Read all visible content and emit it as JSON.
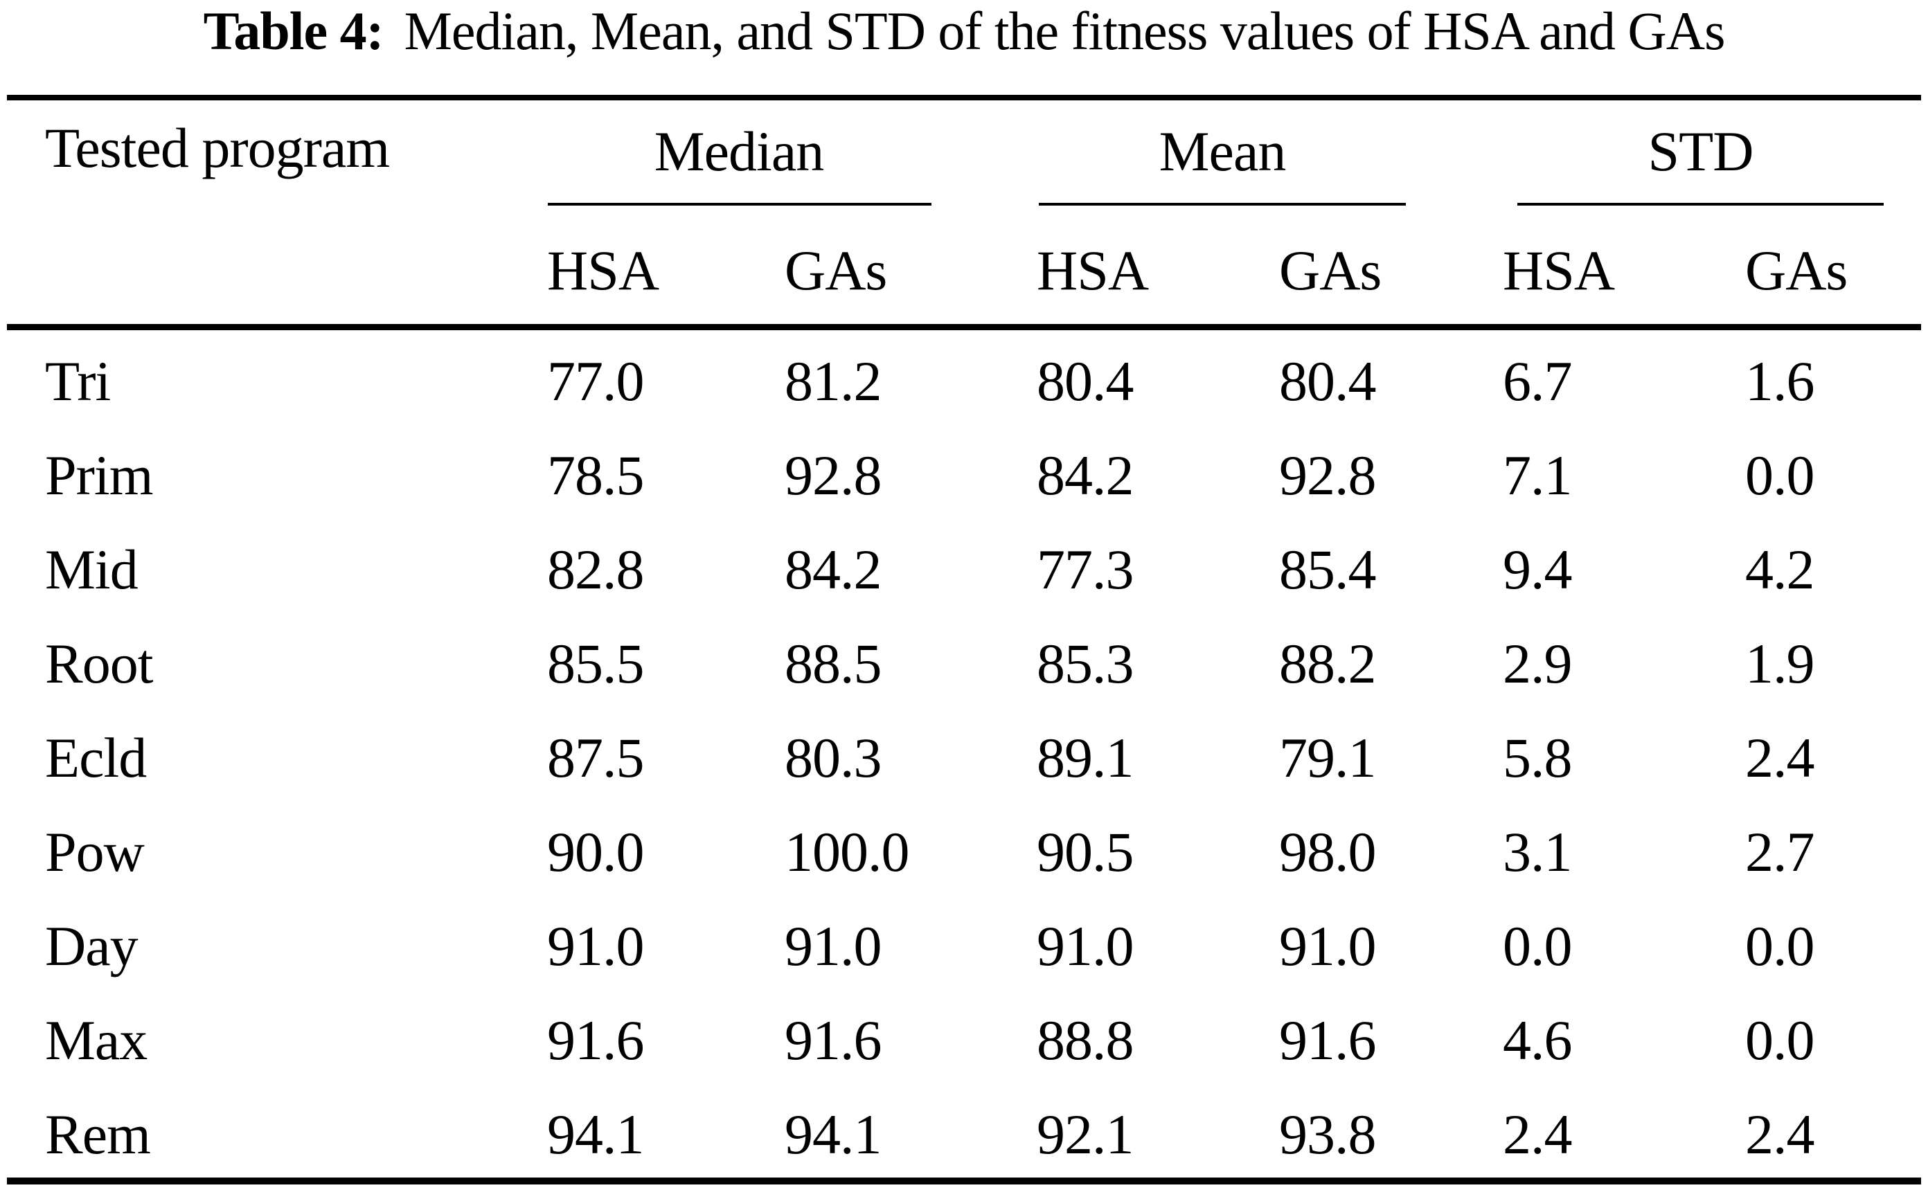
{
  "caption": {
    "label": "Table 4:",
    "text": "Median, Mean, and STD of the fitness values of HSA and GAs"
  },
  "table": {
    "program_header": "Tested program",
    "groups": [
      {
        "label": "Median"
      },
      {
        "label": "Mean"
      },
      {
        "label": "STD"
      }
    ],
    "subheaders": [
      "HSA",
      "GAs",
      "HSA",
      "GAs",
      "HSA",
      "GAs"
    ],
    "rows": [
      {
        "program": "Tri",
        "median_hsa": "77.0",
        "median_gas": "81.2",
        "mean_hsa": "80.4",
        "mean_gas": "80.4",
        "std_hsa": "6.7",
        "std_gas": "1.6"
      },
      {
        "program": "Prim",
        "median_hsa": "78.5",
        "median_gas": "92.8",
        "mean_hsa": "84.2",
        "mean_gas": "92.8",
        "std_hsa": "7.1",
        "std_gas": "0.0"
      },
      {
        "program": "Mid",
        "median_hsa": "82.8",
        "median_gas": "84.2",
        "mean_hsa": "77.3",
        "mean_gas": "85.4",
        "std_hsa": "9.4",
        "std_gas": "4.2"
      },
      {
        "program": "Root",
        "median_hsa": "85.5",
        "median_gas": "88.5",
        "mean_hsa": "85.3",
        "mean_gas": "88.2",
        "std_hsa": "2.9",
        "std_gas": "1.9"
      },
      {
        "program": "Ecld",
        "median_hsa": "87.5",
        "median_gas": "80.3",
        "mean_hsa": "89.1",
        "mean_gas": "79.1",
        "std_hsa": "5.8",
        "std_gas": "2.4"
      },
      {
        "program": "Pow",
        "median_hsa": "90.0",
        "median_gas": "100.0",
        "mean_hsa": "90.5",
        "mean_gas": "98.0",
        "std_hsa": "3.1",
        "std_gas": "2.7"
      },
      {
        "program": "Day",
        "median_hsa": "91.0",
        "median_gas": "91.0",
        "mean_hsa": "91.0",
        "mean_gas": "91.0",
        "std_hsa": "0.0",
        "std_gas": "0.0"
      },
      {
        "program": "Max",
        "median_hsa": "91.6",
        "median_gas": "91.6",
        "mean_hsa": "88.8",
        "mean_gas": "91.6",
        "std_hsa": "4.6",
        "std_gas": "0.0"
      },
      {
        "program": "Rem",
        "median_hsa": "94.1",
        "median_gas": "94.1",
        "mean_hsa": "92.1",
        "mean_gas": "93.8",
        "std_hsa": "2.4",
        "std_gas": "2.4"
      }
    ]
  },
  "colors": {
    "foreground": "#000000",
    "background": "#ffffff"
  }
}
